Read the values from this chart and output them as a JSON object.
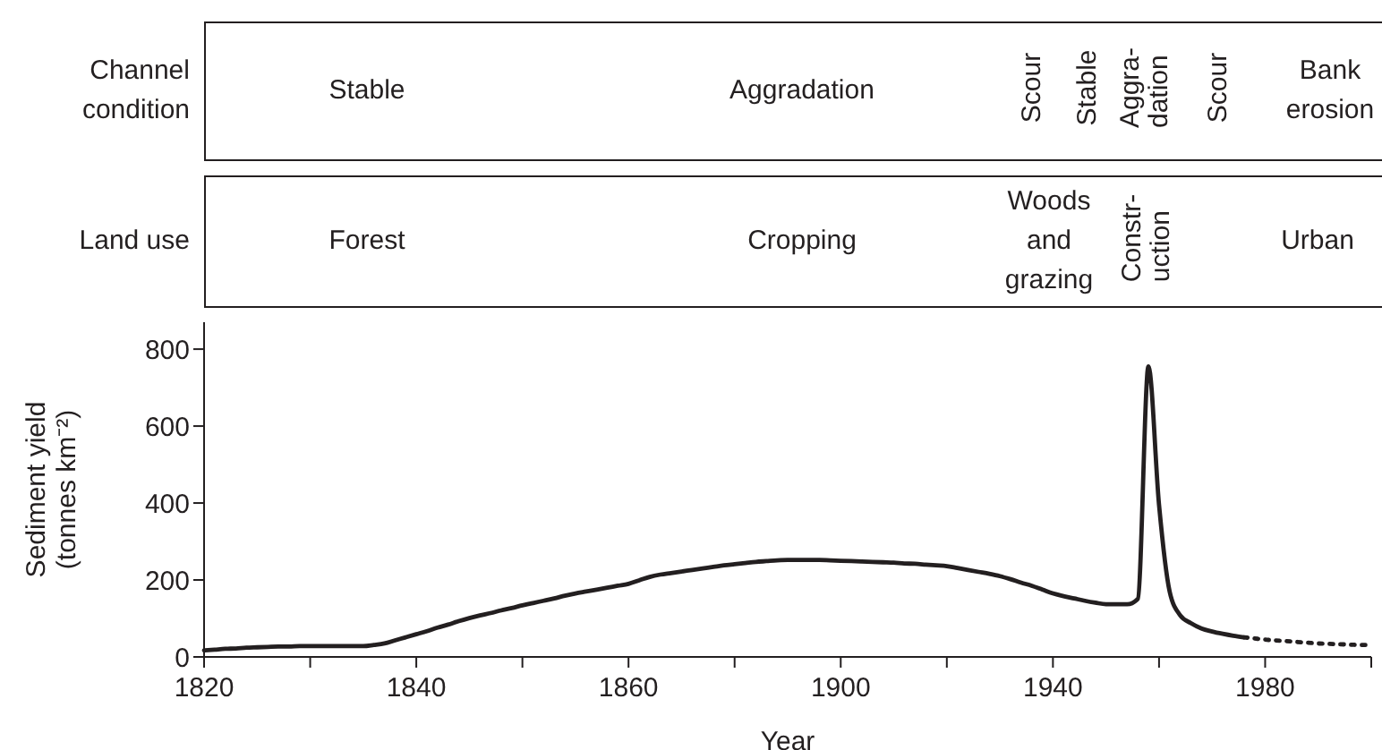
{
  "chart_data": {
    "type": "line",
    "xlabel": "Year",
    "ylabel": "Sediment yield\n(tonnes km⁻²)",
    "categories": [
      "1820",
      null,
      null,
      null,
      null,
      null,
      null,
      null,
      null,
      null,
      null,
      null,
      null,
      null,
      null,
      null,
      null,
      null,
      null,
      null,
      "1840",
      null,
      null,
      null,
      null,
      null,
      null,
      null,
      null,
      null,
      null,
      null,
      null,
      null,
      null,
      null,
      null,
      null,
      null,
      null,
      "1860",
      null,
      null,
      null,
      null,
      null,
      null,
      null,
      null,
      null,
      null,
      null,
      null,
      null,
      null,
      null,
      null,
      null,
      null,
      null,
      "1900",
      null,
      null,
      null,
      null,
      null,
      null,
      null,
      null,
      null,
      null,
      null,
      null,
      null,
      null,
      null,
      null,
      null,
      null,
      null,
      "1940",
      null,
      null,
      null,
      null,
      null,
      null,
      null,
      null,
      null,
      null,
      null,
      null,
      null,
      null,
      null,
      null,
      null,
      null,
      null,
      "1980",
      null,
      null,
      null,
      null,
      null,
      null,
      null,
      null,
      null,
      null
    ],
    "ylim": [
      0,
      870
    ],
    "yticks": [
      0,
      200,
      400,
      600,
      800
    ],
    "marker": "none",
    "series": [
      {
        "color": "#231f20",
        "line_style": "solid",
        "values": [
          17,
          19,
          21,
          22,
          24,
          25,
          26,
          27,
          27,
          28,
          28,
          28,
          28,
          28,
          28,
          28,
          31,
          35,
          43,
          51,
          59,
          67,
          76,
          84,
          93,
          101,
          108,
          114,
          121,
          127,
          134,
          140,
          146,
          152,
          159,
          165,
          170,
          175,
          180,
          185,
          190,
          199,
          208,
          214,
          218,
          222,
          226,
          230,
          234,
          238,
          241,
          244,
          247,
          249,
          251,
          252,
          252,
          252,
          252,
          251,
          250,
          249,
          248,
          247,
          246,
          245,
          243,
          242,
          240,
          238,
          236,
          231,
          226,
          221,
          216,
          210,
          202,
          193,
          185,
          175,
          165,
          158,
          152,
          146,
          141,
          137,
          137,
          137,
          151,
          755,
          395,
          170,
          108,
          88,
          74,
          66,
          60,
          55,
          51,
          null,
          null,
          null,
          null,
          null,
          null,
          null,
          null,
          null,
          null,
          null,
          null
        ]
      },
      {
        "color": "#231f20",
        "line_style": "dotted",
        "values": [
          null,
          null,
          null,
          null,
          null,
          null,
          null,
          null,
          null,
          null,
          null,
          null,
          null,
          null,
          null,
          null,
          null,
          null,
          null,
          null,
          null,
          null,
          null,
          null,
          null,
          null,
          null,
          null,
          null,
          null,
          null,
          null,
          null,
          null,
          null,
          null,
          null,
          null,
          null,
          null,
          null,
          null,
          null,
          null,
          null,
          null,
          null,
          null,
          null,
          null,
          null,
          null,
          null,
          null,
          null,
          null,
          null,
          null,
          null,
          null,
          null,
          null,
          null,
          null,
          null,
          null,
          null,
          null,
          null,
          null,
          null,
          null,
          null,
          null,
          null,
          null,
          null,
          null,
          null,
          null,
          null,
          null,
          null,
          null,
          null,
          null,
          null,
          null,
          null,
          null,
          null,
          null,
          null,
          null,
          null,
          null,
          null,
          null,
          51,
          48,
          45,
          43,
          41,
          39,
          37,
          35,
          34,
          33,
          32,
          31,
          31
        ]
      }
    ],
    "annotations": [
      "Channel\ncondition",
      "Stable",
      "Aggradation",
      "Scour",
      "Stable",
      "Aggra-\ndation",
      "Scour",
      "Bank\nerosion",
      "Land use",
      "Forest",
      "Cropping",
      "Woods\nand\ngrazing",
      "Constr-\nuction",
      "Urban"
    ]
  }
}
